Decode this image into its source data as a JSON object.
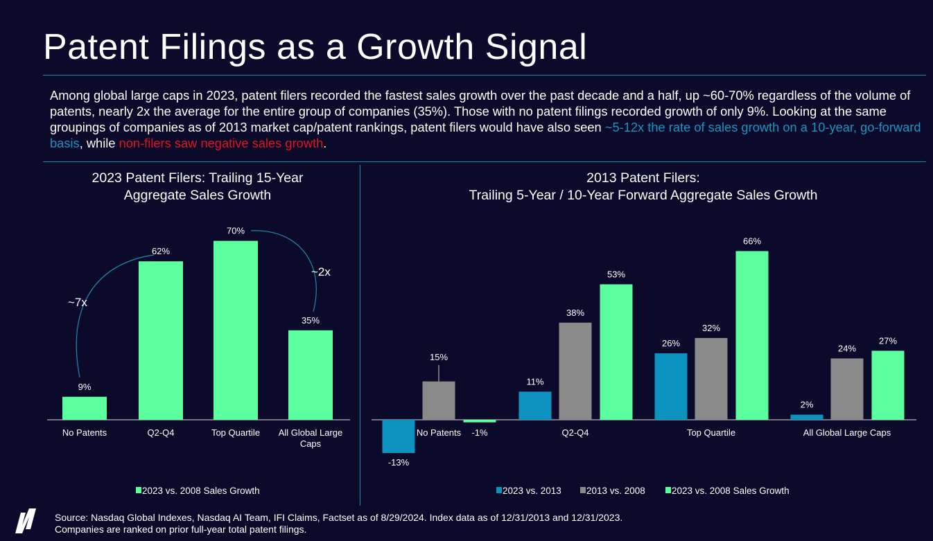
{
  "title": "Patent Filings as a Growth Signal",
  "summary": {
    "part1": "Among global large caps in 2023, patent filers recorded the fastest sales growth over the past decade and a half, up ~60-70% regardless of the volume of patents, nearly 2x the average for the entire group of companies (35%). Those with no patent filings recorded growth of only 9%. Looking at the same groupings of companies as of 2013 market cap/patent rankings, patent filers would have also seen ",
    "highlight_blue": "~5-12x the rate of sales growth on a 10-year, go-forward basis",
    "part2": ", while ",
    "highlight_red": "non-filers saw negative sales growth",
    "part3": "."
  },
  "colors": {
    "background": "#0b0a2b",
    "green": "#5cff9e",
    "blue": "#0d93c0",
    "grey": "#8a8a8a",
    "accent_rule": "#1f8bb0",
    "red": "#e0141e"
  },
  "chart_data": [
    {
      "type": "bar",
      "title_lines": [
        "2023 Patent Filers: Trailing 15-Year",
        "Aggregate Sales Growth"
      ],
      "categories": [
        "No Patents",
        "Q2-Q4",
        "Top Quartile",
        "All Global Large Caps"
      ],
      "series": [
        {
          "name": "2023 vs. 2008 Sales Growth",
          "values": [
            9,
            62,
            70,
            35
          ],
          "labels": [
            "9%",
            "62%",
            "70%",
            "35%"
          ],
          "color": "#5cff9e"
        }
      ],
      "annotations": [
        "~7x",
        "~2x"
      ],
      "legend": "bottom"
    },
    {
      "type": "bar",
      "title_lines": [
        "2013 Patent Filers:",
        "Trailing 5-Year / 10-Year Forward Aggregate Sales Growth"
      ],
      "categories": [
        "No Patents",
        "Q2-Q4",
        "Top Quartile",
        "All Global Large Caps"
      ],
      "series": [
        {
          "name": "2023 vs. 2013",
          "values": [
            -13,
            11,
            26,
            2
          ],
          "labels": [
            "-13%",
            "11%",
            "26%",
            "2%"
          ],
          "color": "#0d93c0"
        },
        {
          "name": "2013 vs. 2008",
          "values": [
            15,
            38,
            32,
            24
          ],
          "labels": [
            "15%",
            "38%",
            "32%",
            "24%"
          ],
          "color": "#8a8a8a"
        },
        {
          "name": "2023 vs. 2008 Sales Growth",
          "values": [
            -1,
            53,
            66,
            27
          ],
          "labels": [
            "-1%",
            "53%",
            "66%",
            "27%"
          ],
          "color": "#5cff9e"
        }
      ],
      "legend": "bottom"
    }
  ],
  "footer": {
    "source_line1": "Source: Nasdaq Global Indexes, Nasdaq AI Team, IFI Claims, Factset as of 8/29/2024. Index data as of 12/31/2013 and 12/31/2023.",
    "source_line2": "Companies are ranked on prior full-year total patent filings.",
    "logo": "Nasdaq"
  }
}
